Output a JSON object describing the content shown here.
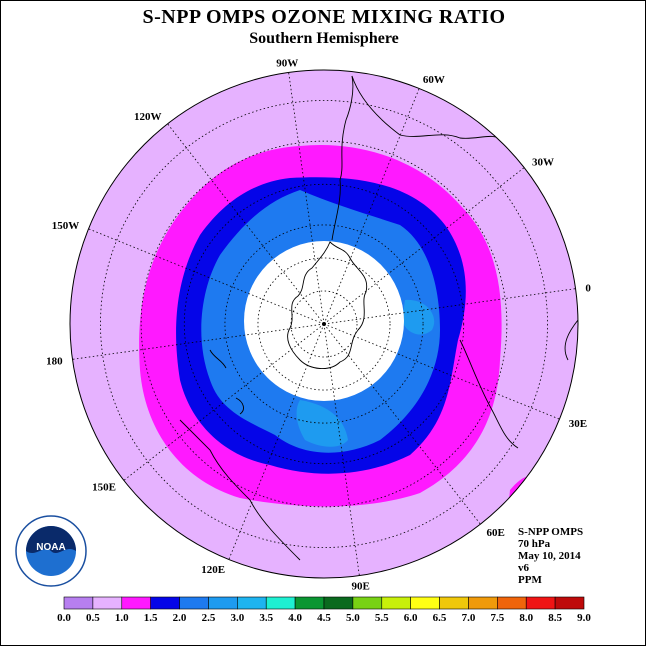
{
  "title": "S-NPP OMPS OZONE MIXING RATIO",
  "subtitle": "Southern Hemisphere",
  "longitude_labels": [
    {
      "text": "90W",
      "lon": -90
    },
    {
      "text": "60W",
      "lon": -60
    },
    {
      "text": "120W",
      "lon": -120
    },
    {
      "text": "30W",
      "lon": -30
    },
    {
      "text": "150W",
      "lon": -150
    },
    {
      "text": "0",
      "lon": 0
    },
    {
      "text": "180",
      "lon": 180
    },
    {
      "text": "30E",
      "lon": 30
    },
    {
      "text": "150E",
      "lon": 150
    },
    {
      "text": "60E",
      "lon": 60
    },
    {
      "text": "120E",
      "lon": 120
    },
    {
      "text": "90E",
      "lon": 90
    }
  ],
  "info": {
    "instrument": "S-NPP OMPS",
    "level": "70 hPa",
    "date": "May 10, 2014",
    "version": "v6",
    "units": "PPM"
  },
  "logo": {
    "text": "NOAA",
    "icon": "noaa-logo-icon"
  },
  "colorbar": {
    "ticks": [
      "0.0",
      "0.5",
      "1.0",
      "1.5",
      "2.0",
      "2.5",
      "3.0",
      "3.5",
      "4.0",
      "4.5",
      "5.0",
      "5.5",
      "6.0",
      "6.5",
      "7.0",
      "7.5",
      "8.0",
      "8.5",
      "9.0"
    ],
    "colors": [
      "#b77ff0",
      "#e6b2ff",
      "#ff19ff",
      "#0505e8",
      "#1e7af0",
      "#1e9bf0",
      "#1eb4f0",
      "#1ef0d2",
      "#0a9632",
      "#0a6a1e",
      "#78d214",
      "#c8f00a",
      "#ffff14",
      "#f0c80a",
      "#f09a0a",
      "#f0640a",
      "#f01414",
      "#be0a0a",
      "#825032"
    ]
  },
  "map_colors": {
    "background": "#e6b2ff",
    "band_1": "#ff19ff",
    "band_2": "#0505e8",
    "band_3": "#1e7af0",
    "band_4": "#1e9bf0",
    "polar_night": "#ffffff"
  }
}
